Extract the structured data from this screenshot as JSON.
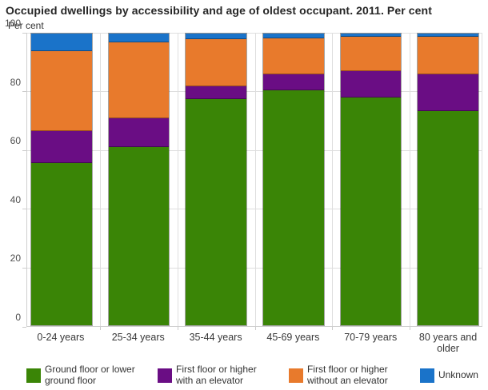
{
  "title": "Occupied dwellings by accessibility and age of oldest occupant. 2011. Per cent",
  "chart_data": {
    "type": "bar",
    "stacked": true,
    "title": "Occupied dwellings by accessibility and age of oldest occupant. 2011. Per cent",
    "ylabel": "Per cent",
    "xlabel": "",
    "ylim": [
      0,
      100
    ],
    "yticks": [
      0,
      20,
      40,
      60,
      80,
      100
    ],
    "grid": true,
    "legend_position": "bottom",
    "categories": [
      "0-24 years",
      "25-34 years",
      "35-44 years",
      "45-69 years",
      "70-79 years",
      "80 years and older"
    ],
    "series": [
      {
        "name": "Ground floor or lower ground floor",
        "color": "#3a8506",
        "values": [
          55.5,
          61.0,
          77.5,
          80.5,
          78.0,
          73.5
        ]
      },
      {
        "name": "First floor or higher with an elevator",
        "color": "#6a0d84",
        "values": [
          11.0,
          10.0,
          4.5,
          5.5,
          9.0,
          12.5
        ]
      },
      {
        "name": "First floor or higher without an elevator",
        "color": "#e87a2c",
        "values": [
          27.5,
          26.0,
          16.0,
          12.5,
          12.0,
          13.0
        ]
      },
      {
        "name": "Unknown",
        "color": "#1a73c9",
        "values": [
          6.0,
          3.0,
          2.0,
          1.5,
          1.0,
          1.0
        ]
      }
    ],
    "colors": {
      "gridline": "#dedede",
      "axis_line": "#cfcfcf",
      "title_text": "#262626",
      "tick_text": "#4d4d4d"
    }
  }
}
